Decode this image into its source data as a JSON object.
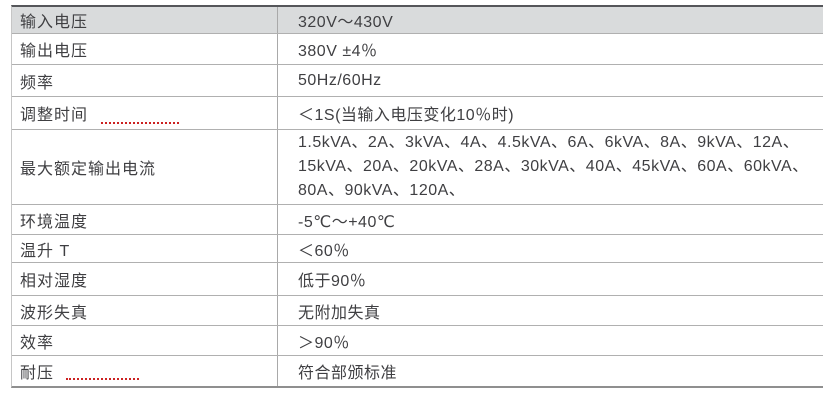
{
  "colors": {
    "header_row_bg": "#d9dbdc",
    "text": "#3f3f42",
    "table_border_top": "#55565a",
    "table_border_inner": "#b0b0b0",
    "spellcheck_underline": "#cc2222"
  },
  "table": {
    "description_visible": "specification table, 2 columns, 11 rows",
    "rows": [
      {
        "label": "输入电压",
        "value": "320V～430V",
        "header": true
      },
      {
        "label": "输出电压",
        "value": "380V ±4％"
      },
      {
        "label": "频率",
        "value": "50Hz/60Hz"
      },
      {
        "label": "调整时间",
        "value": "＜1S(当输入电压变化10％时)",
        "spellcheck_underline": true
      },
      {
        "label": "最大额定输出电流",
        "value_lines": [
          "1.5kVA、2A、3kVA、4A、4.5kVA、6A、6kVA、8A、9kVA、12A、",
          "15kVA、20A、20kVA、28A、30kVA、40A、45kVA、60A、60kVA、",
          "80A、90kVA、120A、"
        ]
      },
      {
        "label": "环境温度",
        "value": "-5℃～+40℃"
      },
      {
        "label": "温升 T",
        "value": "＜60％"
      },
      {
        "label": "相对湿度",
        "value": "低于90％"
      },
      {
        "label": "波形失真",
        "value": "无附加失真"
      },
      {
        "label": "效率",
        "value": "＞90％"
      },
      {
        "label": "耐压",
        "value": "符合部颁标准",
        "spellcheck_underline": true
      }
    ]
  }
}
